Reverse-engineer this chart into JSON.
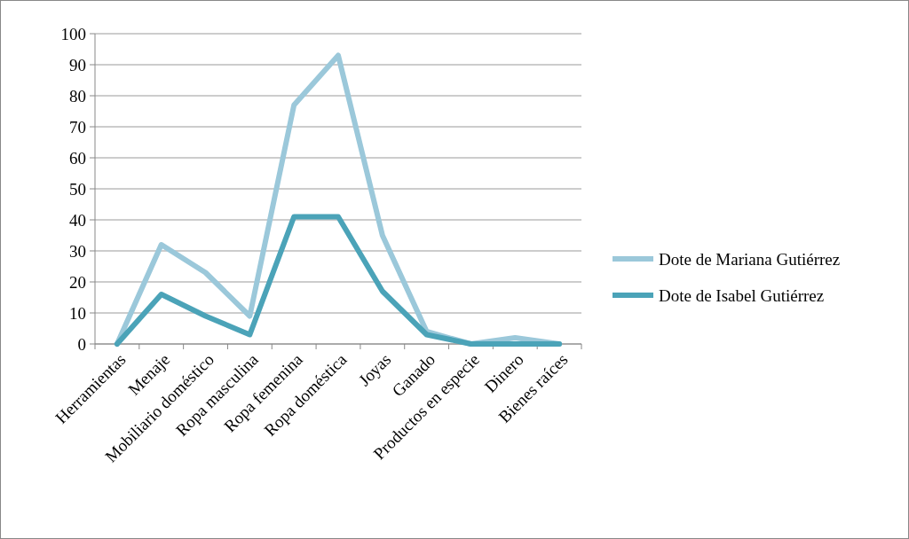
{
  "chart_data": {
    "type": "line",
    "categories": [
      "Herramientas",
      "Menaje",
      "Mobiliario doméstico",
      "Ropa masculina",
      "Ropa femenina",
      "Ropa doméstica",
      "Joyas",
      "Ganado",
      "Productos en especie",
      "Dinero",
      "Bienes raíces"
    ],
    "series": [
      {
        "name": "Dote de Mariana Gutiérrez",
        "color": "#9bc8da",
        "values": [
          0,
          32,
          23,
          9,
          77,
          93,
          35,
          4,
          0,
          2,
          0
        ]
      },
      {
        "name": "Dote de Isabel Gutiérrez",
        "color": "#4ba3b8",
        "values": [
          0,
          16,
          9,
          3,
          41,
          41,
          17,
          3,
          0,
          0,
          0
        ]
      }
    ],
    "ylim": [
      0,
      100
    ],
    "yticks": [
      0,
      10,
      20,
      30,
      40,
      50,
      60,
      70,
      80,
      90,
      100
    ],
    "grid": "y",
    "legend": "right",
    "marker": "none",
    "line_style": "solid"
  }
}
